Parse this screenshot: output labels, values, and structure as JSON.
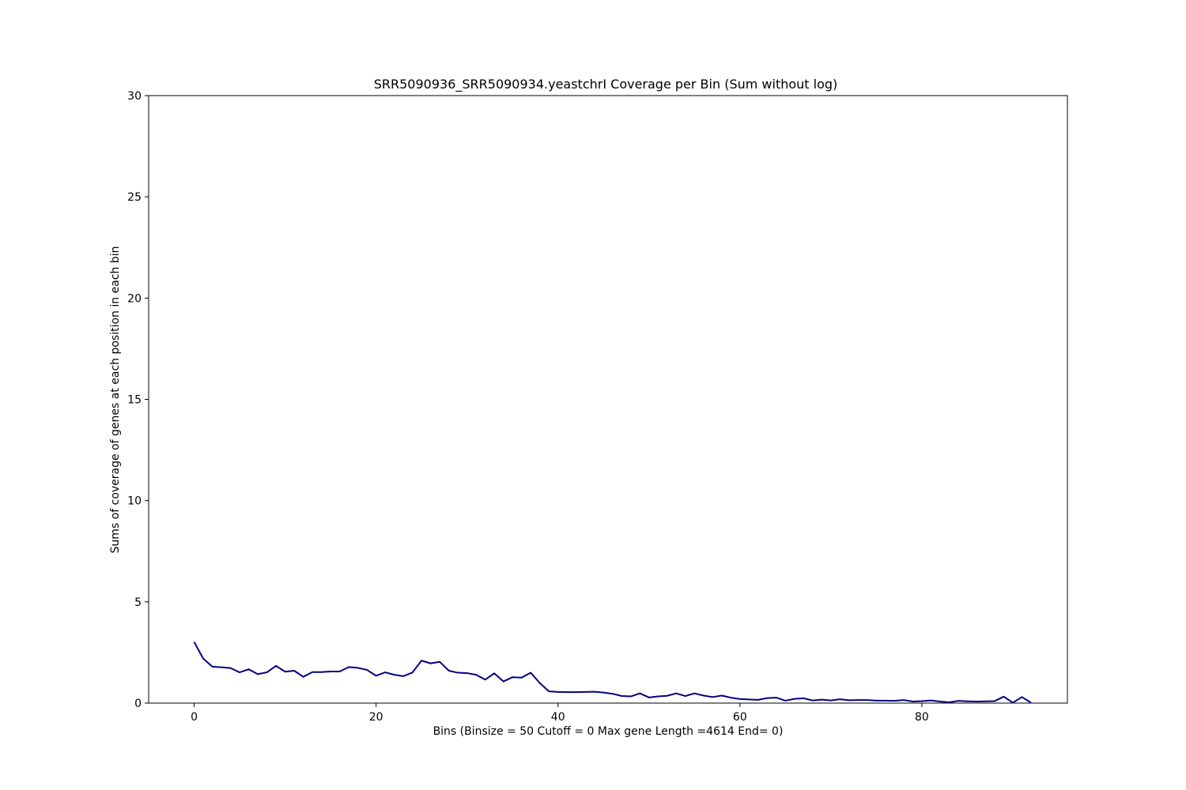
{
  "chart_data": {
    "type": "line",
    "title": "SRR5090936_SRR5090934.yeastchrI Coverage per Bin (Sum without log)",
    "xlabel": "Bins  (Binsize = 50 Cutoff = 0 Max gene Length =4614 End= 0)",
    "ylabel": "Sums of coverage of genes at each position in each bin",
    "xlim": [
      -5,
      96
    ],
    "ylim": [
      0,
      30
    ],
    "xticks": [
      0,
      20,
      40,
      60,
      80
    ],
    "yticks": [
      0,
      5,
      10,
      15,
      20,
      25,
      30
    ],
    "grid": false,
    "line_color": "#000080",
    "series": [
      {
        "x": [
          0,
          1,
          2,
          3,
          4,
          5,
          6,
          7,
          8,
          9,
          10,
          11,
          12,
          13,
          14,
          15,
          16,
          17,
          18,
          19,
          20,
          21,
          22,
          23,
          24,
          25,
          26,
          27,
          28,
          29,
          30,
          31,
          32,
          33,
          34,
          35,
          36,
          37,
          38,
          39,
          40,
          41,
          42,
          43,
          44,
          45,
          46,
          47,
          48,
          49,
          50,
          51,
          52,
          53,
          54,
          55,
          56,
          57,
          58,
          59,
          60,
          61,
          62,
          63,
          64,
          65,
          66,
          67,
          68,
          69,
          70,
          71,
          72,
          73,
          74,
          75,
          76,
          77,
          78,
          79,
          80,
          81,
          82,
          83,
          84,
          85,
          86,
          87,
          88,
          89,
          90,
          91,
          92
        ],
        "values": [
          3.02,
          2.2,
          1.8,
          1.77,
          1.73,
          1.52,
          1.67,
          1.43,
          1.52,
          1.84,
          1.55,
          1.6,
          1.3,
          1.53,
          1.53,
          1.56,
          1.56,
          1.78,
          1.74,
          1.64,
          1.35,
          1.52,
          1.4,
          1.33,
          1.51,
          2.1,
          1.96,
          2.04,
          1.6,
          1.5,
          1.48,
          1.4,
          1.16,
          1.47,
          1.07,
          1.28,
          1.26,
          1.5,
          0.99,
          0.58,
          0.55,
          0.54,
          0.54,
          0.55,
          0.56,
          0.52,
          0.46,
          0.35,
          0.33,
          0.48,
          0.28,
          0.33,
          0.36,
          0.48,
          0.35,
          0.48,
          0.37,
          0.3,
          0.37,
          0.27,
          0.2,
          0.18,
          0.16,
          0.25,
          0.27,
          0.12,
          0.21,
          0.24,
          0.13,
          0.17,
          0.13,
          0.19,
          0.14,
          0.15,
          0.15,
          0.12,
          0.12,
          0.11,
          0.15,
          0.08,
          0.1,
          0.13,
          0.08,
          0.04,
          0.11,
          0.09,
          0.08,
          0.09,
          0.1,
          0.32,
          0.02,
          0.3,
          0.02
        ]
      }
    ]
  }
}
